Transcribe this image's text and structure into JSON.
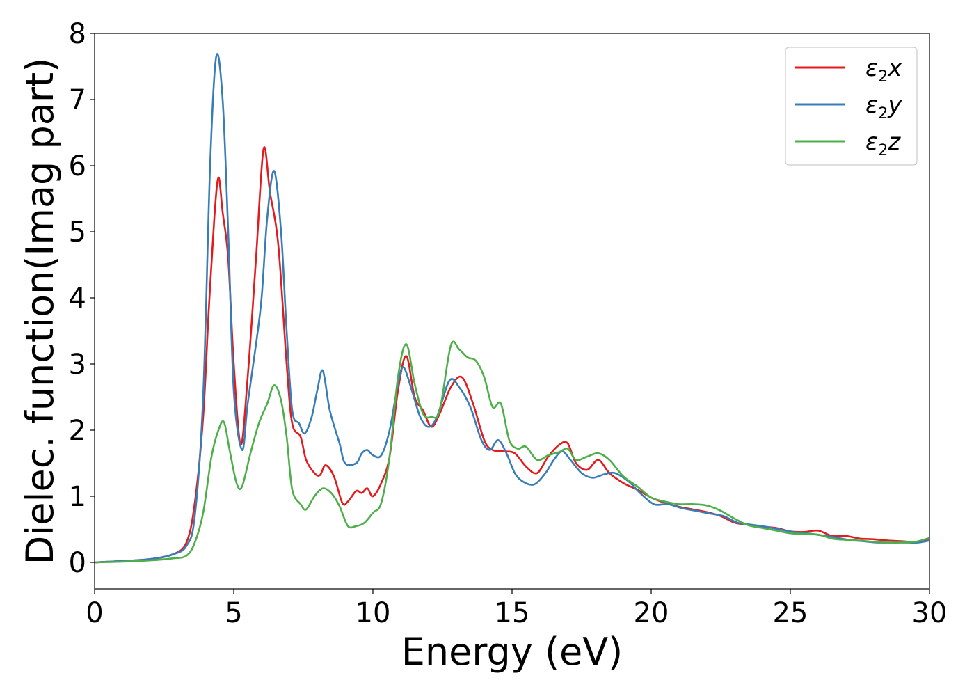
{
  "chart_data": {
    "type": "line",
    "xlabel": "Energy (eV)",
    "ylabel": "Dielec. function(Imag part)",
    "xlim": [
      0,
      30
    ],
    "ylim": [
      -0.4,
      8
    ],
    "xticks": [
      0,
      5,
      10,
      15,
      20,
      25,
      30
    ],
    "yticks": [
      0,
      1,
      2,
      3,
      4,
      5,
      6,
      7,
      8
    ],
    "grid": false,
    "legend_position": "top-right",
    "series": [
      {
        "name": "ε₂x",
        "legend": {
          "base": "ε",
          "sub": "2",
          "var": "x"
        },
        "color": "#e41a1c",
        "points": [
          [
            0,
            0
          ],
          [
            1,
            0.02
          ],
          [
            2,
            0.05
          ],
          [
            2.8,
            0.12
          ],
          [
            3.3,
            0.3
          ],
          [
            3.6,
            0.9
          ],
          [
            3.9,
            2.2
          ],
          [
            4.1,
            3.8
          ],
          [
            4.3,
            5.2
          ],
          [
            4.45,
            5.82
          ],
          [
            4.6,
            5.3
          ],
          [
            4.8,
            4.6
          ],
          [
            5.0,
            3.0
          ],
          [
            5.25,
            1.78
          ],
          [
            5.5,
            2.8
          ],
          [
            5.8,
            4.6
          ],
          [
            6.07,
            6.25
          ],
          [
            6.3,
            5.6
          ],
          [
            6.6,
            4.8
          ],
          [
            6.9,
            3.0
          ],
          [
            7.1,
            2.1
          ],
          [
            7.4,
            1.9
          ],
          [
            7.6,
            1.55
          ],
          [
            7.9,
            1.35
          ],
          [
            8.1,
            1.32
          ],
          [
            8.3,
            1.47
          ],
          [
            8.6,
            1.3
          ],
          [
            8.9,
            0.9
          ],
          [
            9.1,
            0.92
          ],
          [
            9.4,
            1.08
          ],
          [
            9.6,
            1.05
          ],
          [
            9.8,
            1.12
          ],
          [
            10.0,
            1.0
          ],
          [
            10.3,
            1.2
          ],
          [
            10.6,
            1.6
          ],
          [
            10.9,
            2.6
          ],
          [
            11.2,
            3.12
          ],
          [
            11.5,
            2.5
          ],
          [
            11.8,
            2.3
          ],
          [
            12.1,
            2.05
          ],
          [
            12.4,
            2.25
          ],
          [
            12.8,
            2.65
          ],
          [
            13.2,
            2.8
          ],
          [
            13.6,
            2.4
          ],
          [
            14.0,
            1.85
          ],
          [
            14.3,
            1.7
          ],
          [
            14.7,
            1.68
          ],
          [
            15.1,
            1.65
          ],
          [
            15.5,
            1.45
          ],
          [
            15.9,
            1.35
          ],
          [
            16.3,
            1.6
          ],
          [
            16.7,
            1.78
          ],
          [
            17.0,
            1.8
          ],
          [
            17.3,
            1.5
          ],
          [
            17.7,
            1.4
          ],
          [
            18.1,
            1.55
          ],
          [
            18.5,
            1.35
          ],
          [
            19.0,
            1.2
          ],
          [
            19.5,
            1.1
          ],
          [
            20.0,
            0.98
          ],
          [
            20.5,
            0.9
          ],
          [
            21.0,
            0.84
          ],
          [
            21.5,
            0.8
          ],
          [
            22.0,
            0.76
          ],
          [
            22.5,
            0.7
          ],
          [
            23.0,
            0.6
          ],
          [
            23.5,
            0.57
          ],
          [
            24.0,
            0.54
          ],
          [
            24.5,
            0.52
          ],
          [
            25.0,
            0.47
          ],
          [
            25.5,
            0.46
          ],
          [
            26.0,
            0.48
          ],
          [
            26.5,
            0.4
          ],
          [
            27.0,
            0.4
          ],
          [
            27.5,
            0.36
          ],
          [
            28.0,
            0.35
          ],
          [
            28.5,
            0.33
          ],
          [
            29.0,
            0.32
          ],
          [
            29.5,
            0.31
          ],
          [
            30.0,
            0.36
          ]
        ]
      },
      {
        "name": "ε₂y",
        "legend": {
          "base": "ε",
          "sub": "2",
          "var": "y"
        },
        "color": "#377eb8",
        "points": [
          [
            0,
            0
          ],
          [
            1,
            0.02
          ],
          [
            2,
            0.05
          ],
          [
            2.8,
            0.12
          ],
          [
            3.3,
            0.25
          ],
          [
            3.6,
            0.7
          ],
          [
            3.9,
            2.5
          ],
          [
            4.15,
            6.0
          ],
          [
            4.37,
            7.65
          ],
          [
            4.6,
            7.0
          ],
          [
            4.8,
            5.0
          ],
          [
            5.0,
            2.6
          ],
          [
            5.3,
            1.7
          ],
          [
            5.5,
            2.4
          ],
          [
            5.8,
            3.3
          ],
          [
            6.0,
            4.0
          ],
          [
            6.2,
            5.2
          ],
          [
            6.45,
            5.92
          ],
          [
            6.7,
            5.0
          ],
          [
            6.9,
            3.5
          ],
          [
            7.1,
            2.3
          ],
          [
            7.35,
            2.1
          ],
          [
            7.55,
            1.95
          ],
          [
            7.8,
            2.2
          ],
          [
            8.0,
            2.6
          ],
          [
            8.2,
            2.9
          ],
          [
            8.45,
            2.3
          ],
          [
            8.8,
            1.8
          ],
          [
            9.0,
            1.5
          ],
          [
            9.4,
            1.5
          ],
          [
            9.6,
            1.65
          ],
          [
            9.8,
            1.7
          ],
          [
            10.0,
            1.62
          ],
          [
            10.3,
            1.62
          ],
          [
            10.6,
            2.0
          ],
          [
            10.9,
            2.7
          ],
          [
            11.1,
            2.95
          ],
          [
            11.4,
            2.6
          ],
          [
            11.7,
            2.2
          ],
          [
            12.0,
            2.05
          ],
          [
            12.3,
            2.2
          ],
          [
            12.75,
            2.75
          ],
          [
            13.1,
            2.65
          ],
          [
            13.5,
            2.35
          ],
          [
            13.9,
            1.85
          ],
          [
            14.2,
            1.7
          ],
          [
            14.5,
            1.85
          ],
          [
            14.8,
            1.65
          ],
          [
            15.1,
            1.35
          ],
          [
            15.4,
            1.22
          ],
          [
            15.8,
            1.18
          ],
          [
            16.2,
            1.35
          ],
          [
            16.5,
            1.55
          ],
          [
            16.8,
            1.68
          ],
          [
            17.1,
            1.55
          ],
          [
            17.5,
            1.35
          ],
          [
            17.9,
            1.28
          ],
          [
            18.3,
            1.33
          ],
          [
            18.7,
            1.35
          ],
          [
            19.2,
            1.22
          ],
          [
            19.6,
            1.05
          ],
          [
            20.1,
            0.88
          ],
          [
            20.6,
            0.88
          ],
          [
            21.1,
            0.82
          ],
          [
            21.6,
            0.78
          ],
          [
            22.1,
            0.74
          ],
          [
            22.6,
            0.7
          ],
          [
            23.1,
            0.6
          ],
          [
            23.6,
            0.57
          ],
          [
            24.1,
            0.54
          ],
          [
            24.6,
            0.5
          ],
          [
            25.1,
            0.46
          ],
          [
            25.6,
            0.44
          ],
          [
            26.1,
            0.41
          ],
          [
            26.6,
            0.38
          ],
          [
            27.1,
            0.34
          ],
          [
            27.6,
            0.32
          ],
          [
            28.1,
            0.3
          ],
          [
            28.6,
            0.3
          ],
          [
            29.1,
            0.3
          ],
          [
            29.6,
            0.3
          ],
          [
            30.0,
            0.33
          ]
        ]
      },
      {
        "name": "ε₂z",
        "legend": {
          "base": "ε",
          "sub": "2",
          "var": "z"
        },
        "color": "#4daf4a",
        "points": [
          [
            0,
            0
          ],
          [
            1,
            0.01
          ],
          [
            2,
            0.03
          ],
          [
            2.8,
            0.06
          ],
          [
            3.3,
            0.1
          ],
          [
            3.6,
            0.3
          ],
          [
            3.9,
            0.75
          ],
          [
            4.2,
            1.6
          ],
          [
            4.45,
            2.0
          ],
          [
            4.65,
            2.12
          ],
          [
            4.85,
            1.7
          ],
          [
            5.1,
            1.2
          ],
          [
            5.3,
            1.15
          ],
          [
            5.6,
            1.65
          ],
          [
            5.9,
            2.1
          ],
          [
            6.2,
            2.4
          ],
          [
            6.45,
            2.68
          ],
          [
            6.7,
            2.45
          ],
          [
            6.9,
            1.9
          ],
          [
            7.1,
            1.1
          ],
          [
            7.4,
            0.88
          ],
          [
            7.6,
            0.8
          ],
          [
            7.9,
            1.0
          ],
          [
            8.2,
            1.12
          ],
          [
            8.5,
            1.05
          ],
          [
            8.8,
            0.85
          ],
          [
            9.1,
            0.55
          ],
          [
            9.4,
            0.55
          ],
          [
            9.7,
            0.6
          ],
          [
            10.0,
            0.75
          ],
          [
            10.3,
            0.9
          ],
          [
            10.6,
            1.6
          ],
          [
            10.9,
            2.8
          ],
          [
            11.2,
            3.3
          ],
          [
            11.5,
            2.7
          ],
          [
            11.8,
            2.25
          ],
          [
            12.1,
            2.2
          ],
          [
            12.4,
            2.3
          ],
          [
            12.8,
            3.28
          ],
          [
            13.1,
            3.22
          ],
          [
            13.4,
            3.1
          ],
          [
            13.7,
            3.05
          ],
          [
            14.0,
            2.8
          ],
          [
            14.3,
            2.35
          ],
          [
            14.6,
            2.4
          ],
          [
            14.9,
            1.85
          ],
          [
            15.2,
            1.72
          ],
          [
            15.5,
            1.75
          ],
          [
            15.9,
            1.55
          ],
          [
            16.3,
            1.62
          ],
          [
            16.7,
            1.67
          ],
          [
            17.0,
            1.72
          ],
          [
            17.3,
            1.55
          ],
          [
            17.7,
            1.6
          ],
          [
            18.1,
            1.65
          ],
          [
            18.5,
            1.55
          ],
          [
            19.0,
            1.3
          ],
          [
            19.5,
            1.15
          ],
          [
            20.0,
            0.98
          ],
          [
            20.5,
            0.92
          ],
          [
            21.0,
            0.88
          ],
          [
            21.5,
            0.88
          ],
          [
            22.0,
            0.86
          ],
          [
            22.5,
            0.78
          ],
          [
            23.0,
            0.66
          ],
          [
            23.5,
            0.56
          ],
          [
            24.0,
            0.52
          ],
          [
            24.5,
            0.48
          ],
          [
            25.0,
            0.44
          ],
          [
            25.5,
            0.43
          ],
          [
            26.0,
            0.42
          ],
          [
            26.5,
            0.36
          ],
          [
            27.0,
            0.34
          ],
          [
            27.5,
            0.33
          ],
          [
            28.0,
            0.31
          ],
          [
            28.5,
            0.3
          ],
          [
            29.0,
            0.3
          ],
          [
            29.5,
            0.31
          ],
          [
            30.0,
            0.37
          ]
        ]
      }
    ]
  }
}
